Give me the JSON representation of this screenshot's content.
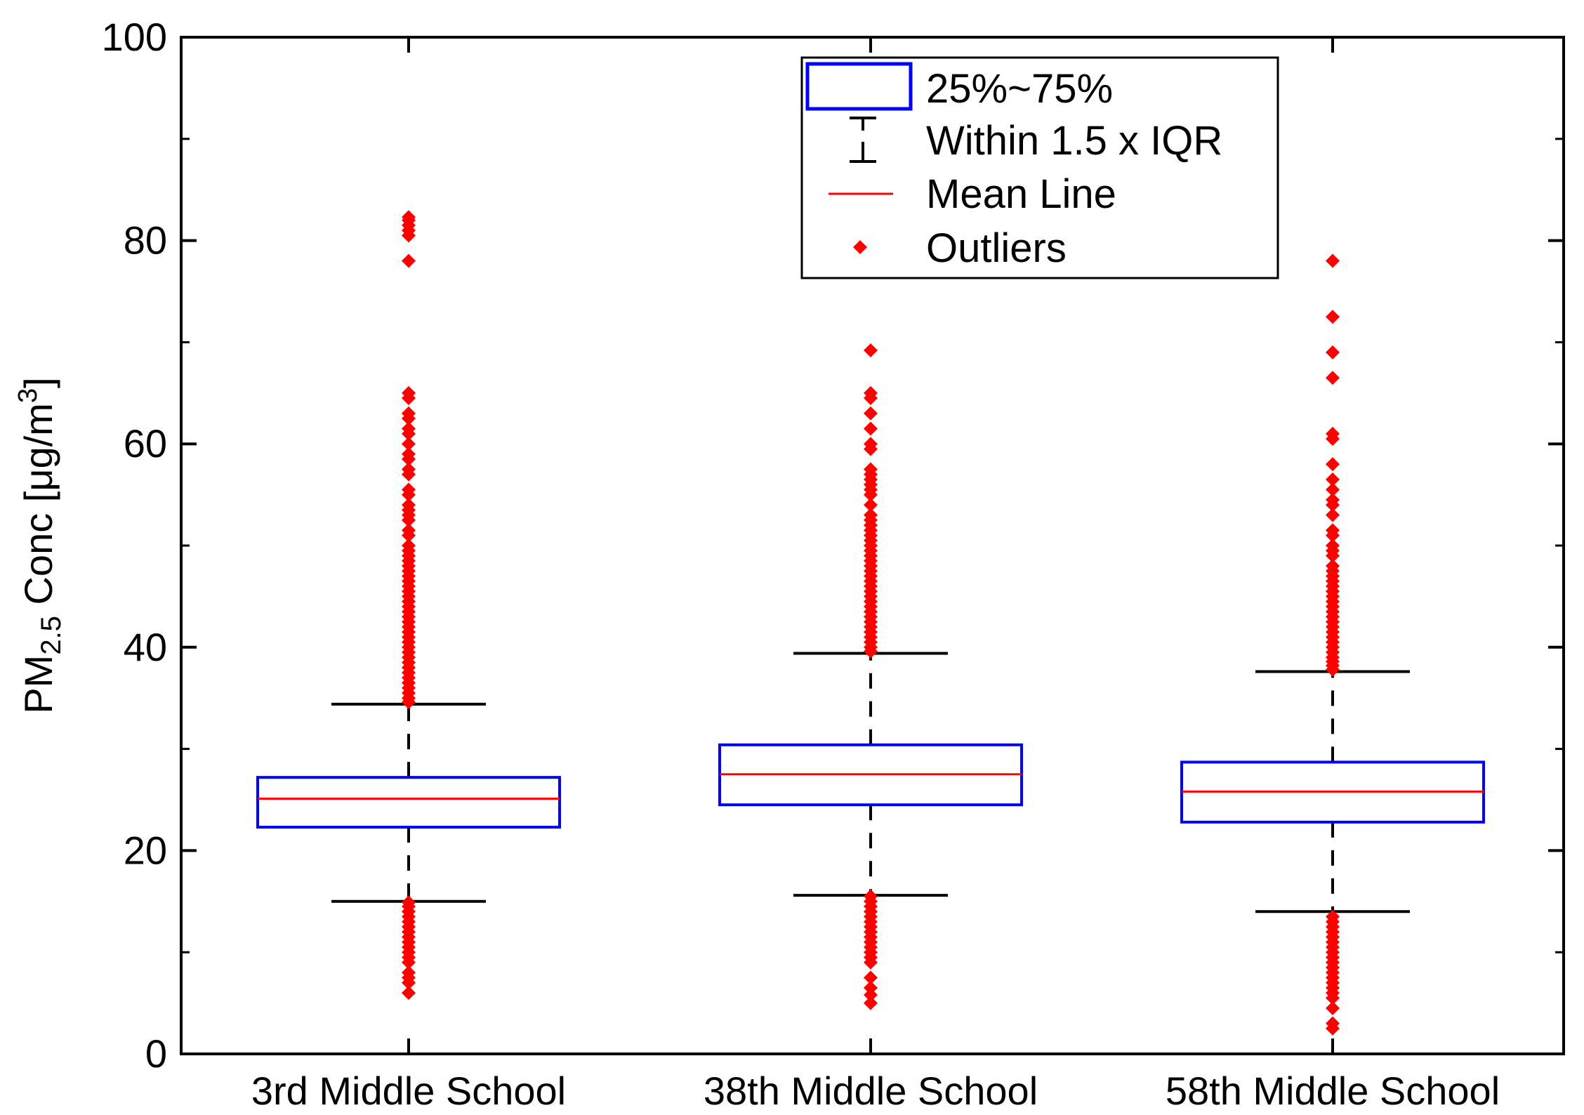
{
  "chart_data": {
    "type": "box",
    "title": "",
    "xlabel": "",
    "ylabel": {
      "main": "PM",
      "subscript": "2.5",
      "middle": " Conc [μg/m",
      "superscript": "3",
      "end": "]"
    },
    "ylim": [
      0,
      100
    ],
    "yticks": [
      0,
      20,
      40,
      60,
      80,
      100
    ],
    "yticks_minor": [
      10,
      30,
      50,
      70,
      90
    ],
    "categories": [
      "3rd Middle School",
      "38th Middle School",
      "58th Middle School"
    ],
    "boxes": [
      {
        "q1": 22.3,
        "q3": 27.2,
        "mean": 25.1,
        "whisker_low": 15.0,
        "whisker_high": 34.4,
        "outliers_high": [
          34.6,
          35.0,
          35.5,
          36.0,
          36.5,
          37.0,
          37.5,
          38.0,
          38.5,
          39.0,
          39.5,
          40.0,
          40.5,
          41.0,
          41.5,
          42.0,
          42.5,
          43.0,
          43.5,
          44.0,
          44.5,
          45.0,
          45.5,
          46.0,
          46.5,
          47.0,
          47.5,
          48.0,
          48.5,
          49.0,
          49.5,
          50.0,
          51.0,
          51.5,
          52.5,
          53.0,
          53.5,
          54.0,
          55.0,
          55.5,
          57.0,
          57.5,
          58.5,
          59.0,
          60.0,
          61.0,
          61.5,
          62.5,
          63.0,
          64.5,
          65.0,
          78.0,
          80.5,
          81.0,
          81.5,
          82.0,
          82.3
        ],
        "outliers_low": [
          6.0,
          7.0,
          7.5,
          8.0,
          9.0,
          9.5,
          10.0,
          10.5,
          11.0,
          11.5,
          12.0,
          12.5,
          13.0,
          13.5,
          14.0,
          14.5,
          14.9
        ]
      },
      {
        "q1": 24.5,
        "q3": 30.4,
        "mean": 27.5,
        "whisker_low": 15.6,
        "whisker_high": 39.4,
        "outliers_high": [
          39.6,
          40.0,
          40.5,
          41.0,
          41.5,
          42.0,
          42.5,
          43.0,
          43.5,
          44.0,
          44.5,
          45.0,
          45.5,
          46.0,
          46.5,
          47.0,
          47.5,
          48.0,
          48.5,
          49.0,
          49.5,
          50.0,
          50.5,
          51.0,
          51.5,
          52.0,
          52.5,
          53.0,
          54.0,
          55.0,
          55.5,
          56.0,
          56.5,
          57.0,
          57.5,
          59.5,
          60.0,
          61.5,
          63.0,
          64.5,
          65.0,
          69.2
        ],
        "outliers_low": [
          5.0,
          5.8,
          6.5,
          7.5,
          9.0,
          9.5,
          10.0,
          10.5,
          11.0,
          11.5,
          12.0,
          12.5,
          13.0,
          13.5,
          14.0,
          14.5,
          15.0,
          15.5
        ]
      },
      {
        "q1": 22.8,
        "q3": 28.7,
        "mean": 25.8,
        "whisker_low": 14.0,
        "whisker_high": 37.6,
        "outliers_high": [
          37.8,
          38.2,
          38.6,
          39.0,
          39.5,
          40.0,
          40.5,
          41.0,
          41.5,
          42.0,
          42.5,
          43.0,
          43.5,
          44.0,
          44.5,
          45.0,
          45.5,
          46.0,
          46.5,
          47.0,
          47.5,
          48.0,
          49.0,
          49.5,
          50.0,
          51.0,
          51.5,
          53.0,
          54.0,
          54.5,
          55.5,
          56.5,
          58.0,
          60.5,
          61.0,
          66.5,
          69.0,
          72.5,
          78.0
        ],
        "outliers_low": [
          2.5,
          3.0,
          4.5,
          5.5,
          6.0,
          6.5,
          7.0,
          7.5,
          8.0,
          8.5,
          9.0,
          9.5,
          10.0,
          10.5,
          11.0,
          11.5,
          12.0,
          12.5,
          13.0,
          13.5
        ]
      }
    ],
    "legend": {
      "position": "top-center",
      "items": [
        {
          "name": "box",
          "label": "25%~75%"
        },
        {
          "name": "whisker",
          "label": "Within 1.5 x IQR"
        },
        {
          "name": "mean",
          "label": "Mean Line"
        },
        {
          "name": "outlier",
          "label": "Outliers"
        }
      ]
    },
    "colors": {
      "box": "#0000ff",
      "mean": "#ff0000",
      "outlier": "#ff0000",
      "whisker": "#000000",
      "axis": "#000000"
    }
  }
}
